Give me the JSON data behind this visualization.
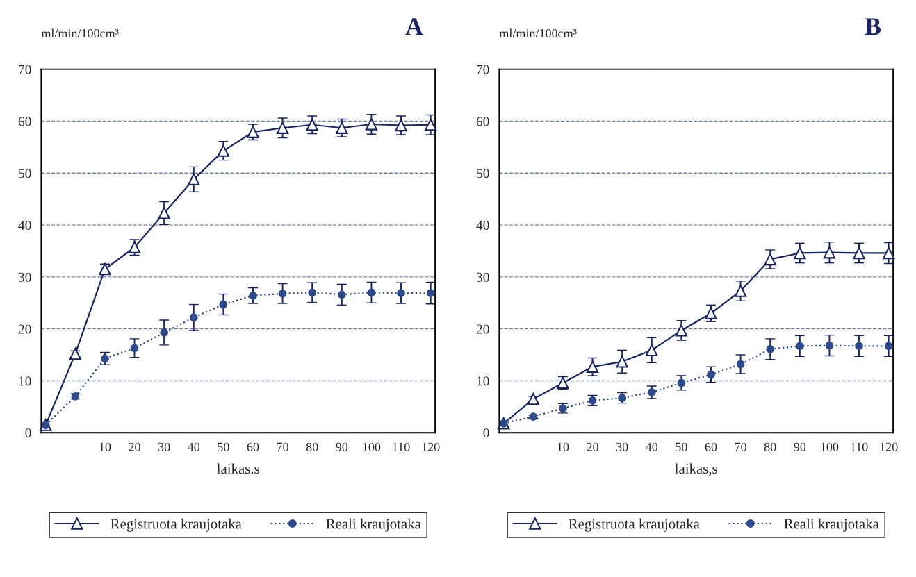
{
  "chart_data": [
    {
      "type": "line",
      "title": "A",
      "ylabel": "ml/min/100cm³",
      "xlabel": "laikas.s",
      "categories": [
        null,
        null,
        "10",
        "20",
        "30",
        "40",
        "50",
        "60",
        "70",
        "80",
        "90",
        "100",
        "110",
        "120"
      ],
      "ylim": [
        0,
        70
      ],
      "yticks": [
        0,
        10,
        20,
        30,
        40,
        50,
        60,
        70
      ],
      "grid": "y",
      "legend": "bottom",
      "series": [
        {
          "name": "Registruota kraujotaka",
          "color": "#1a2560",
          "marker": "triangle",
          "line_style": "solid",
          "values": [
            1.5,
            15.2,
            31.5,
            35.7,
            42.3,
            48.8,
            54.3,
            57.9,
            58.7,
            59.3,
            58.7,
            59.4,
            59.2,
            59.3
          ],
          "errors": [
            null,
            0.6,
            1,
            1.5,
            2.2,
            2.4,
            1.8,
            1.5,
            1.9,
            1.7,
            1.7,
            1.9,
            1.8,
            1.9
          ]
        },
        {
          "name": "Reali kraujotaka",
          "color": "#2e4a8a",
          "marker": "circle",
          "line_style": "dotted",
          "values": [
            1.5,
            7,
            14.3,
            16.3,
            19.3,
            22.2,
            24.7,
            26.4,
            26.8,
            27.0,
            26.6,
            27.0,
            26.9,
            26.9
          ],
          "errors": [
            null,
            0.5,
            1.2,
            1.8,
            2.4,
            2.5,
            2,
            1.5,
            1.9,
            1.9,
            2,
            2,
            2,
            2.1
          ]
        }
      ]
    },
    {
      "type": "line",
      "title": "B",
      "ylabel": "ml/min/100cm³",
      "xlabel": "laikas,s",
      "categories": [
        null,
        null,
        "10",
        "20",
        "30",
        "40",
        "50",
        "60",
        "70",
        "80",
        "90",
        "100",
        "110",
        "120"
      ],
      "ylim": [
        0,
        70
      ],
      "yticks": [
        0,
        10,
        20,
        30,
        40,
        50,
        60,
        70
      ],
      "grid": "y",
      "legend": "bottom",
      "series": [
        {
          "name": "Registruota kraujotaka",
          "color": "#1a2560",
          "marker": "triangle",
          "line_style": "solid",
          "values": [
            1.8,
            6.5,
            9.6,
            12.7,
            13.7,
            15.9,
            19.7,
            23.0,
            27.3,
            33.4,
            34.6,
            34.7,
            34.6,
            34.6
          ],
          "errors": [
            null,
            0.5,
            1.2,
            1.7,
            2.2,
            2.4,
            1.9,
            1.6,
            1.9,
            1.8,
            1.9,
            2,
            1.9,
            2
          ]
        },
        {
          "name": "Reali kraujotaka",
          "color": "#2e4a8a",
          "marker": "circle",
          "line_style": "dotted",
          "values": [
            1.8,
            3.1,
            4.7,
            6.2,
            6.7,
            7.8,
            9.6,
            11.2,
            13.2,
            16.1,
            16.7,
            16.8,
            16.7,
            16.7
          ],
          "errors": [
            null,
            0.3,
            0.9,
            1.0,
            1.0,
            1.2,
            1.4,
            1.5,
            1.8,
            2,
            2,
            2,
            2,
            2
          ]
        }
      ]
    }
  ]
}
